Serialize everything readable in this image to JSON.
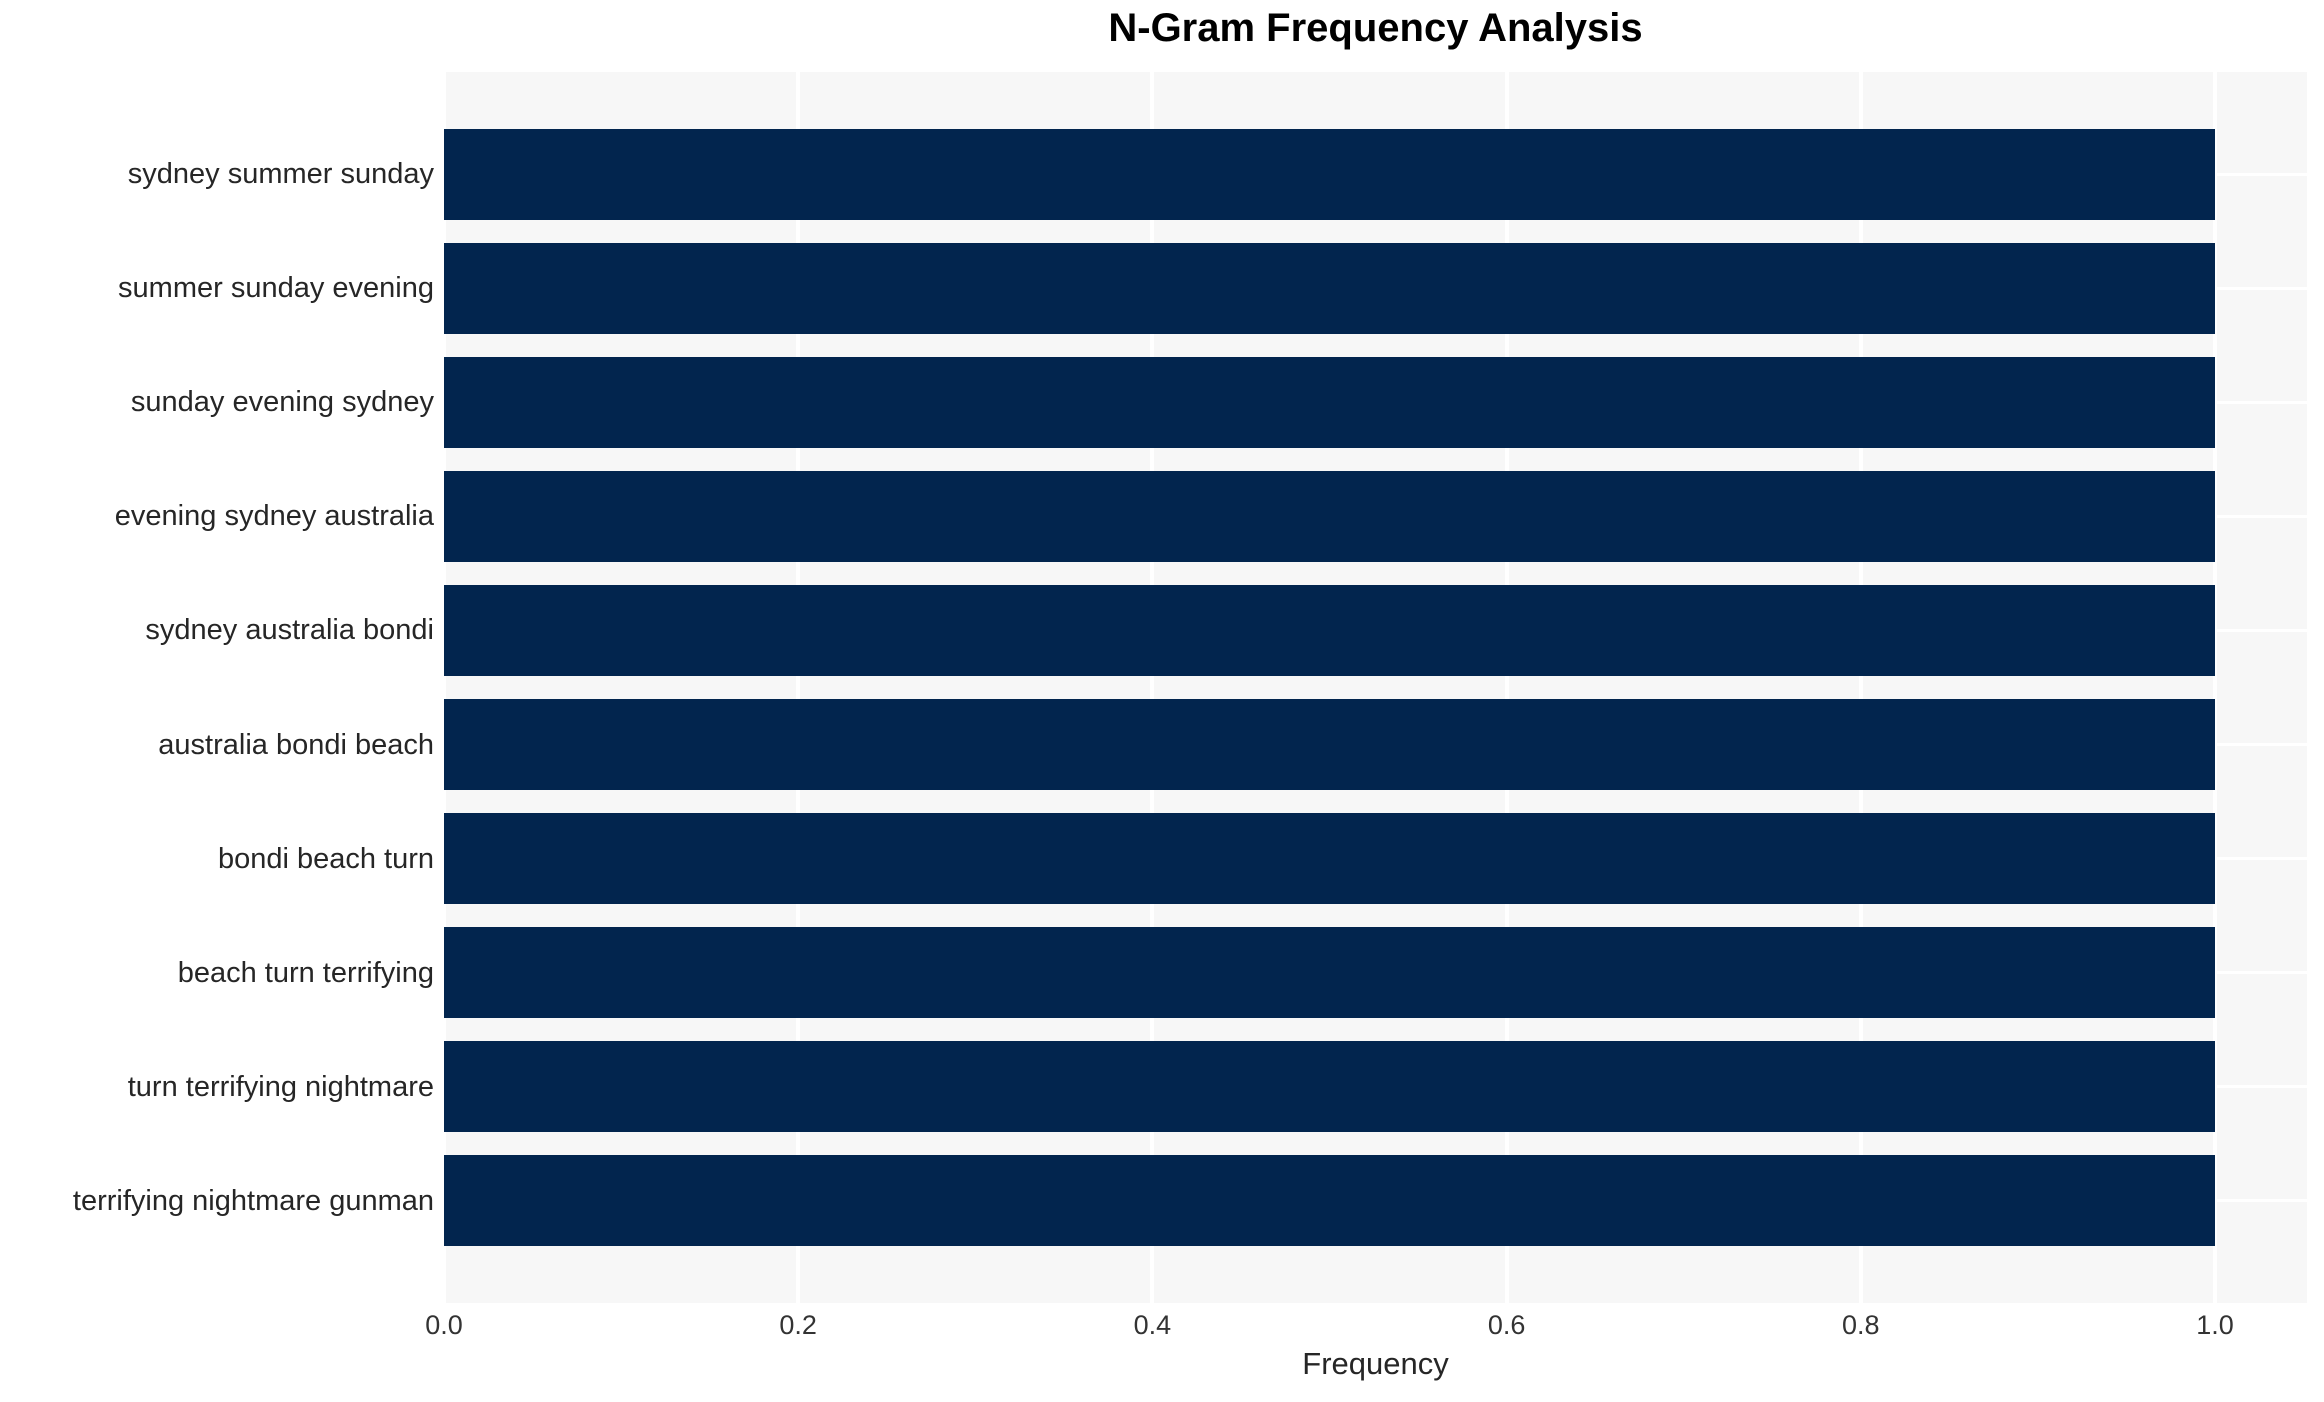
{
  "chart_data": {
    "type": "bar",
    "orientation": "horizontal",
    "title": "N-Gram Frequency Analysis",
    "xlabel": "Frequency",
    "ylabel": "",
    "categories": [
      "sydney summer sunday",
      "summer sunday evening",
      "sunday evening sydney",
      "evening sydney australia",
      "sydney australia bondi",
      "australia bondi beach",
      "bondi beach turn",
      "beach turn terrifying",
      "turn terrifying nightmare",
      "terrifying nightmare gunman"
    ],
    "values": [
      1.0,
      1.0,
      1.0,
      1.0,
      1.0,
      1.0,
      1.0,
      1.0,
      1.0,
      1.0
    ],
    "xticks": [
      "0.0",
      "0.2",
      "0.4",
      "0.6",
      "0.8",
      "1.0"
    ],
    "xlim": [
      0,
      1.052
    ],
    "grid": true,
    "legend": false,
    "colors": {
      "bar": "#02254e",
      "plot_background": "#f7f7f7",
      "gridline": "#ffffff",
      "tick_text": "#333333",
      "label_text": "#262626",
      "title_text": "#000000"
    }
  }
}
